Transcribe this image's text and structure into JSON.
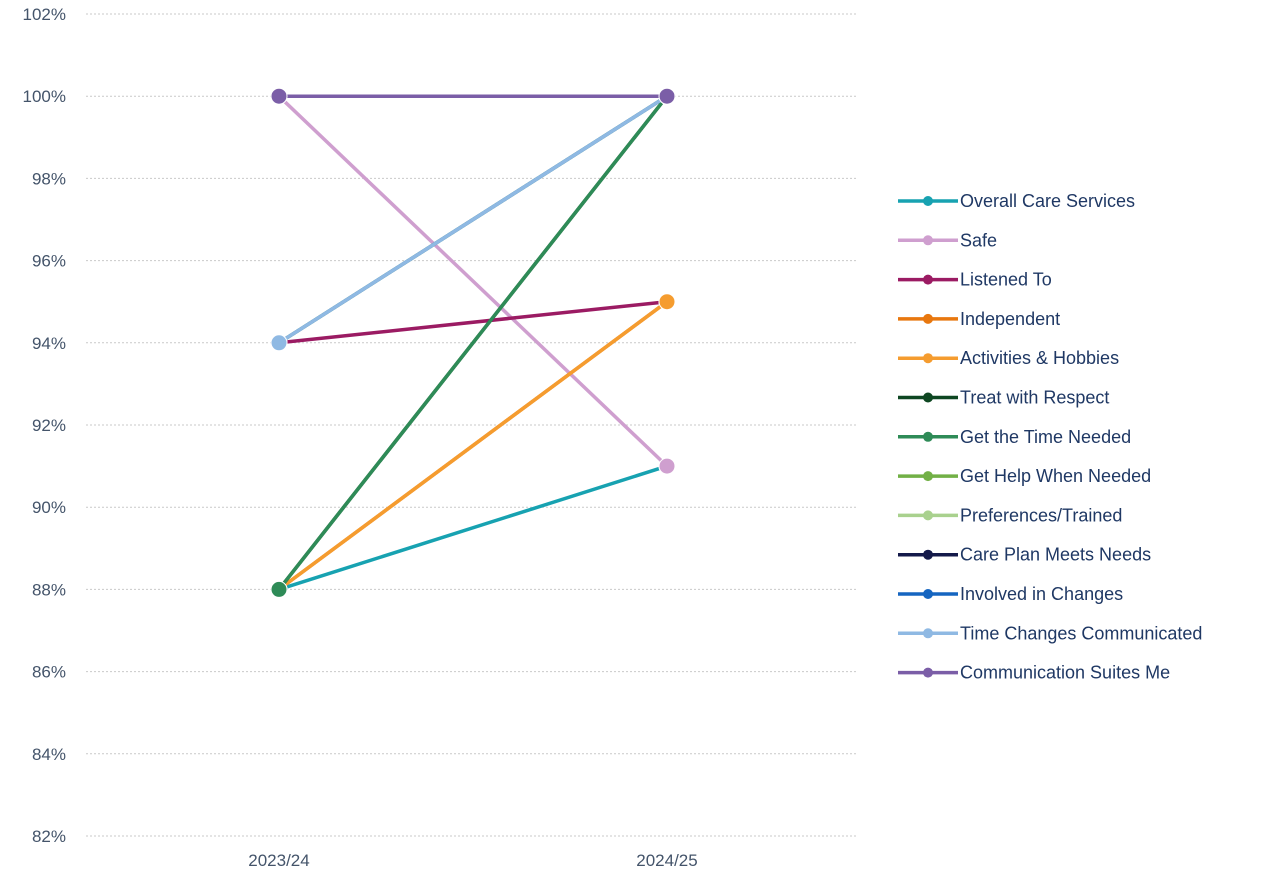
{
  "chart_data": {
    "type": "line",
    "categories": [
      "2023/24",
      "2024/25"
    ],
    "ylim": [
      82,
      102
    ],
    "yticks": [
      82,
      84,
      86,
      88,
      90,
      92,
      94,
      96,
      98,
      100,
      102
    ],
    "ytick_labels": [
      "82%",
      "84%",
      "86%",
      "88%",
      "90%",
      "92%",
      "94%",
      "96%",
      "98%",
      "100%",
      "102%"
    ],
    "grid": true,
    "legend_position": "right",
    "series": [
      {
        "name": "Overall Care Services",
        "color": "#17a2b1",
        "values": [
          88,
          91
        ]
      },
      {
        "name": "Safe",
        "color": "#cf9fcf",
        "values": [
          100,
          91
        ]
      },
      {
        "name": "Listened To",
        "color": "#9b1b63",
        "values": [
          94,
          95
        ]
      },
      {
        "name": "Independent",
        "color": "#e8770e",
        "values": [
          88,
          95
        ]
      },
      {
        "name": "Activities & Hobbies",
        "color": "#f59c2f",
        "values": [
          88,
          95
        ]
      },
      {
        "name": "Treat with Respect",
        "color": "#0e4722",
        "values": [
          88,
          100
        ]
      },
      {
        "name": "Get the Time Needed",
        "color": "#2e8b57",
        "values": [
          88,
          100
        ]
      },
      {
        "name": "Get Help When Needed",
        "color": "#72b046",
        "values": [
          94,
          100
        ]
      },
      {
        "name": "Preferences/Trained",
        "color": "#a9d18e",
        "values": [
          94,
          100
        ]
      },
      {
        "name": "Care Plan Meets Needs",
        "color": "#141a4a",
        "values": [
          100,
          100
        ]
      },
      {
        "name": "Involved in Changes",
        "color": "#1565c0",
        "values": [
          94,
          100
        ]
      },
      {
        "name": "Time Changes Communicated",
        "color": "#8fb9e3",
        "values": [
          94,
          100
        ]
      },
      {
        "name": "Communication Suites Me",
        "color": "#7b5ea7",
        "values": [
          100,
          100
        ]
      }
    ]
  }
}
